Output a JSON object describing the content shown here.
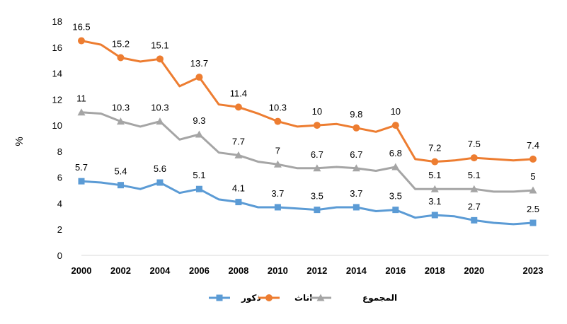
{
  "chart_data": {
    "type": "line",
    "ylabel": "%",
    "ylim": [
      0,
      18
    ],
    "yticks": [
      0,
      2,
      4,
      6,
      8,
      10,
      12,
      14,
      16,
      18
    ],
    "xticks": [
      2000,
      2002,
      2004,
      2006,
      2008,
      2010,
      2012,
      2014,
      2016,
      2018,
      2020,
      2023
    ],
    "x": [
      2000,
      2001,
      2002,
      2003,
      2004,
      2005,
      2006,
      2007,
      2008,
      2009,
      2010,
      2011,
      2012,
      2013,
      2014,
      2015,
      2016,
      2017,
      2018,
      2019,
      2020,
      2021,
      2022,
      2023
    ],
    "grid": false,
    "legend_position": "bottom",
    "series": [
      {
        "name": "ذكور",
        "color": "#5B9BD5",
        "marker": "square",
        "values": [
          5.7,
          5.6,
          5.4,
          5.1,
          5.6,
          4.8,
          5.1,
          4.3,
          4.1,
          3.7,
          3.7,
          3.6,
          3.5,
          3.7,
          3.7,
          3.4,
          3.5,
          2.9,
          3.1,
          3.0,
          2.7,
          2.5,
          2.4,
          2.5
        ],
        "labels": [
          [
            "2000",
            "5.7"
          ],
          [
            "2002",
            "5.4"
          ],
          [
            "2004",
            "5.6"
          ],
          [
            "2006",
            "5.1"
          ],
          [
            "2008",
            "4.1"
          ],
          [
            "2010",
            "3.7"
          ],
          [
            "2012",
            "3.5"
          ],
          [
            "2014",
            "3.7"
          ],
          [
            "2016",
            "3.5"
          ],
          [
            "2018",
            "3.1"
          ],
          [
            "2020",
            "2.7"
          ],
          [
            "2023",
            "2.5"
          ]
        ]
      },
      {
        "name": "اناث",
        "color": "#ED7D31",
        "marker": "circle",
        "values": [
          16.5,
          16.2,
          15.2,
          14.9,
          15.1,
          13.0,
          13.7,
          11.6,
          11.4,
          10.9,
          10.3,
          9.9,
          10.0,
          10.1,
          9.8,
          9.5,
          10.0,
          7.4,
          7.2,
          7.3,
          7.5,
          7.4,
          7.3,
          7.4
        ],
        "labels": [
          [
            "2000",
            "16.5"
          ],
          [
            "2002",
            "15.2"
          ],
          [
            "2004",
            "15.1"
          ],
          [
            "2006",
            "13.7"
          ],
          [
            "2008",
            "11.4"
          ],
          [
            "2010",
            "10.3"
          ],
          [
            "2012",
            "10"
          ],
          [
            "2014",
            "9.8"
          ],
          [
            "2016",
            "10"
          ],
          [
            "2018",
            "7.2"
          ],
          [
            "2020",
            "7.5"
          ],
          [
            "2023",
            "7.4"
          ]
        ]
      },
      {
        "name": "المجموع",
        "color": "#A5A5A5",
        "marker": "triangle",
        "values": [
          11.0,
          10.9,
          10.3,
          9.9,
          10.3,
          8.9,
          9.3,
          7.9,
          7.7,
          7.2,
          7.0,
          6.7,
          6.7,
          6.8,
          6.7,
          6.5,
          6.8,
          5.1,
          5.1,
          5.1,
          5.1,
          4.9,
          4.9,
          5.0
        ],
        "labels": [
          [
            "2000",
            "11"
          ],
          [
            "2002",
            "10.3"
          ],
          [
            "2004",
            "10.3"
          ],
          [
            "2006",
            "9.3"
          ],
          [
            "2008",
            "7.7"
          ],
          [
            "2010",
            "7"
          ],
          [
            "2012",
            "6.7"
          ],
          [
            "2014",
            "6.7"
          ],
          [
            "2016",
            "6.8"
          ],
          [
            "2018",
            "5.1"
          ],
          [
            "2020",
            "5.1"
          ],
          [
            "2023",
            "5"
          ]
        ]
      }
    ]
  }
}
